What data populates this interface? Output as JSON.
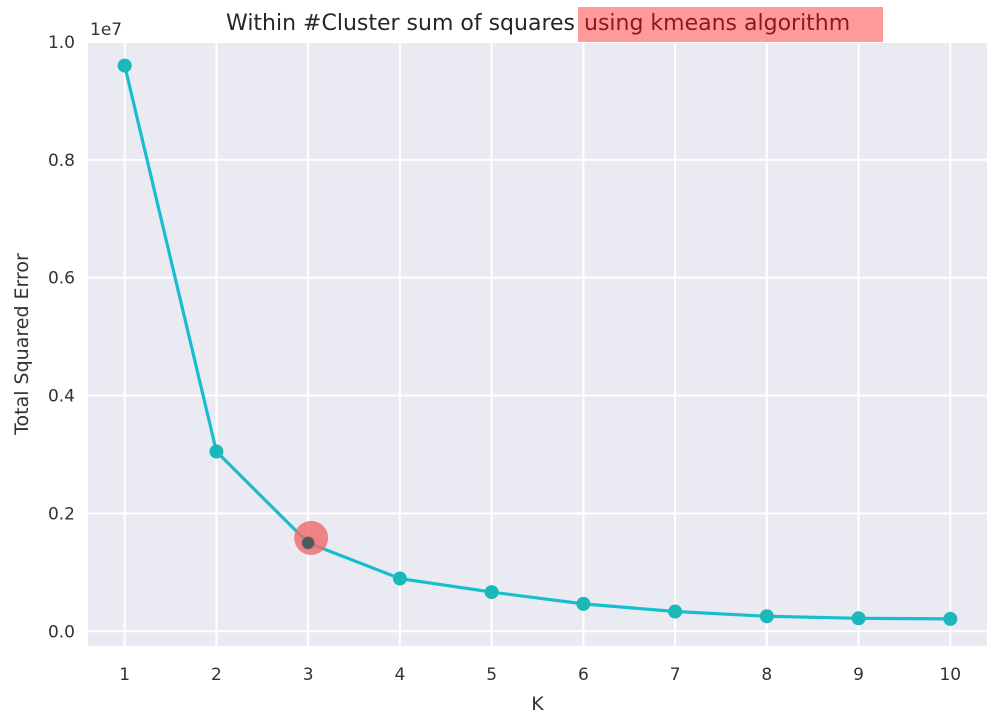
{
  "chart_data": {
    "type": "line",
    "title": "Within #Cluster sum of squares",
    "title_highlight": "using kmeans algorithm",
    "xlabel": "K",
    "ylabel": "Total Squared Error",
    "y_offset_label": "1e7",
    "x": [
      1,
      2,
      3,
      4,
      5,
      6,
      7,
      8,
      9,
      10
    ],
    "xlim": [
      0.6,
      10.4
    ],
    "ylim": [
      -0.025,
      1.0
    ],
    "x_ticks": [
      "1",
      "2",
      "3",
      "4",
      "5",
      "6",
      "7",
      "8",
      "9",
      "10"
    ],
    "y_ticks": [
      0.0,
      0.2,
      0.4,
      0.6,
      0.8,
      1.0
    ],
    "y_tick_labels": [
      "0.0",
      "0.2",
      "0.4",
      "0.6",
      "0.8",
      "1.0"
    ],
    "series": [
      {
        "values": [
          0.96,
          0.305,
          0.15,
          0.0895,
          0.0665,
          0.0465,
          0.0335,
          0.0255,
          0.022,
          0.021
        ]
      }
    ],
    "highlight_point": {
      "x": 3,
      "y": 0.155
    },
    "grid": true,
    "colors": {
      "line": "#17becf",
      "marker": "#1ab8b8",
      "plot_bg": "#eaeaf2",
      "grid": "#ffffff",
      "title_highlight_bg": "#ff9a9a",
      "elbow_marker": "#f06b6b"
    }
  }
}
